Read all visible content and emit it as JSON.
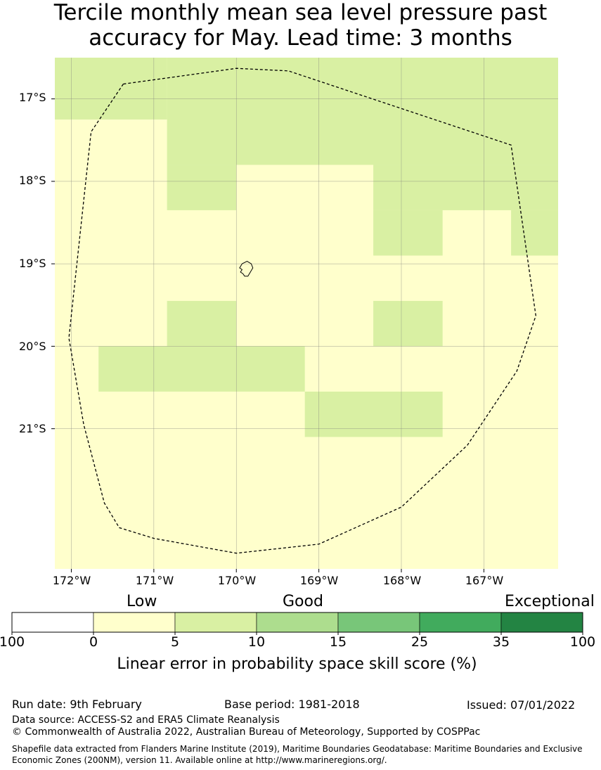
{
  "title": {
    "line1": "Tercile monthly mean sea level pressure past",
    "line2": "accuracy for May. Lead time: 3 months"
  },
  "map": {
    "latitude_labels": [
      "17°S",
      "18°S",
      "19°S",
      "20°S",
      "21°S"
    ],
    "longitude_labels": [
      "172°W",
      "171°W",
      "170°W",
      "169°W",
      "168°W",
      "167°W"
    ],
    "extent": {
      "lon_min": -172.2,
      "lon_max": -166.1,
      "lat_min": -22.7,
      "lat_max": -16.5
    },
    "cell_colors": {
      "low": "#ffffcc",
      "good_low": "#d9f0a3"
    },
    "grid_cells_good_low": [
      {
        "lon0": -172.2,
        "lon1": -170.84,
        "lat0": -17.25,
        "lat1": -16.5
      },
      {
        "lon0": -170.84,
        "lon1": -166.1,
        "lat0": -17.8,
        "lat1": -16.5
      },
      {
        "lon0": -170.84,
        "lon1": -170.0,
        "lat0": -18.35,
        "lat1": -17.8
      },
      {
        "lon0": -168.34,
        "lon1": -166.1,
        "lat0": -18.35,
        "lat1": -17.8
      },
      {
        "lon0": -168.34,
        "lon1": -167.5,
        "lat0": -18.9,
        "lat1": -18.35
      },
      {
        "lon0": -166.67,
        "lon1": -166.1,
        "lat0": -18.9,
        "lat1": -18.35
      },
      {
        "lon0": -170.84,
        "lon1": -170.0,
        "lat0": -20.0,
        "lat1": -19.45
      },
      {
        "lon0": -168.34,
        "lon1": -167.5,
        "lat0": -20.0,
        "lat1": -19.45
      },
      {
        "lon0": -171.67,
        "lon1": -169.17,
        "lat0": -20.55,
        "lat1": -20.0
      },
      {
        "lon0": -169.17,
        "lon1": -167.5,
        "lat0": -21.1,
        "lat1": -20.55
      }
    ],
    "eez_boundary": [
      [
        -171.37,
        -16.82
      ],
      [
        -170.0,
        -16.63
      ],
      [
        -169.37,
        -16.66
      ],
      [
        -166.67,
        -17.56
      ],
      [
        -166.37,
        -19.63
      ],
      [
        -166.6,
        -20.3
      ],
      [
        -167.2,
        -21.2
      ],
      [
        -168.0,
        -21.95
      ],
      [
        -169.0,
        -22.4
      ],
      [
        -170.0,
        -22.51
      ],
      [
        -171.0,
        -22.33
      ],
      [
        -171.42,
        -22.2
      ],
      [
        -171.6,
        -21.9
      ],
      [
        -171.85,
        -20.95
      ],
      [
        -172.03,
        -19.9
      ],
      [
        -171.76,
        -17.4
      ],
      [
        -171.37,
        -16.82
      ]
    ],
    "island_outline": [
      [
        -169.93,
        -19.0
      ],
      [
        -169.87,
        -18.97
      ],
      [
        -169.82,
        -19.0
      ],
      [
        -169.8,
        -19.05
      ],
      [
        -169.83,
        -19.1
      ],
      [
        -169.86,
        -19.15
      ],
      [
        -169.9,
        -19.15
      ],
      [
        -169.92,
        -19.12
      ],
      [
        -169.95,
        -19.1
      ],
      [
        -169.93,
        -19.07
      ],
      [
        -169.96,
        -19.05
      ],
      [
        -169.93,
        -19.0
      ]
    ]
  },
  "legend": {
    "categories": [
      "Low",
      "Good",
      "Exceptional"
    ],
    "ticks": [
      "100",
      "0",
      "5",
      "10",
      "15",
      "25",
      "35",
      "100"
    ],
    "colors": [
      "#ffffff",
      "#ffffcc",
      "#d9f0a3",
      "#addd8e",
      "#78c679",
      "#41ab5d",
      "#238443"
    ],
    "label": "Linear error in probability space skill score (%)"
  },
  "footer": {
    "run_date": "Run date: 9th February",
    "base_period": "Base period: 1981-2018",
    "issued": "Issued: 07/01/2022",
    "data_source": "Data source: ACCESS-S2 and ERA5 Climate Reanalysis",
    "copyright": "© Commonwealth of Australia 2022, Australian Bureau of Meteorology, Supported by COSPPac",
    "shapefile": "Shapefile data extracted from Flanders Marine Institute (2019), Maritime Boundaries Geodatabase: Maritime Boundaries and Exclusive Economic Zones (200NM), version 11. Available online at http://www.marineregions.org/."
  }
}
